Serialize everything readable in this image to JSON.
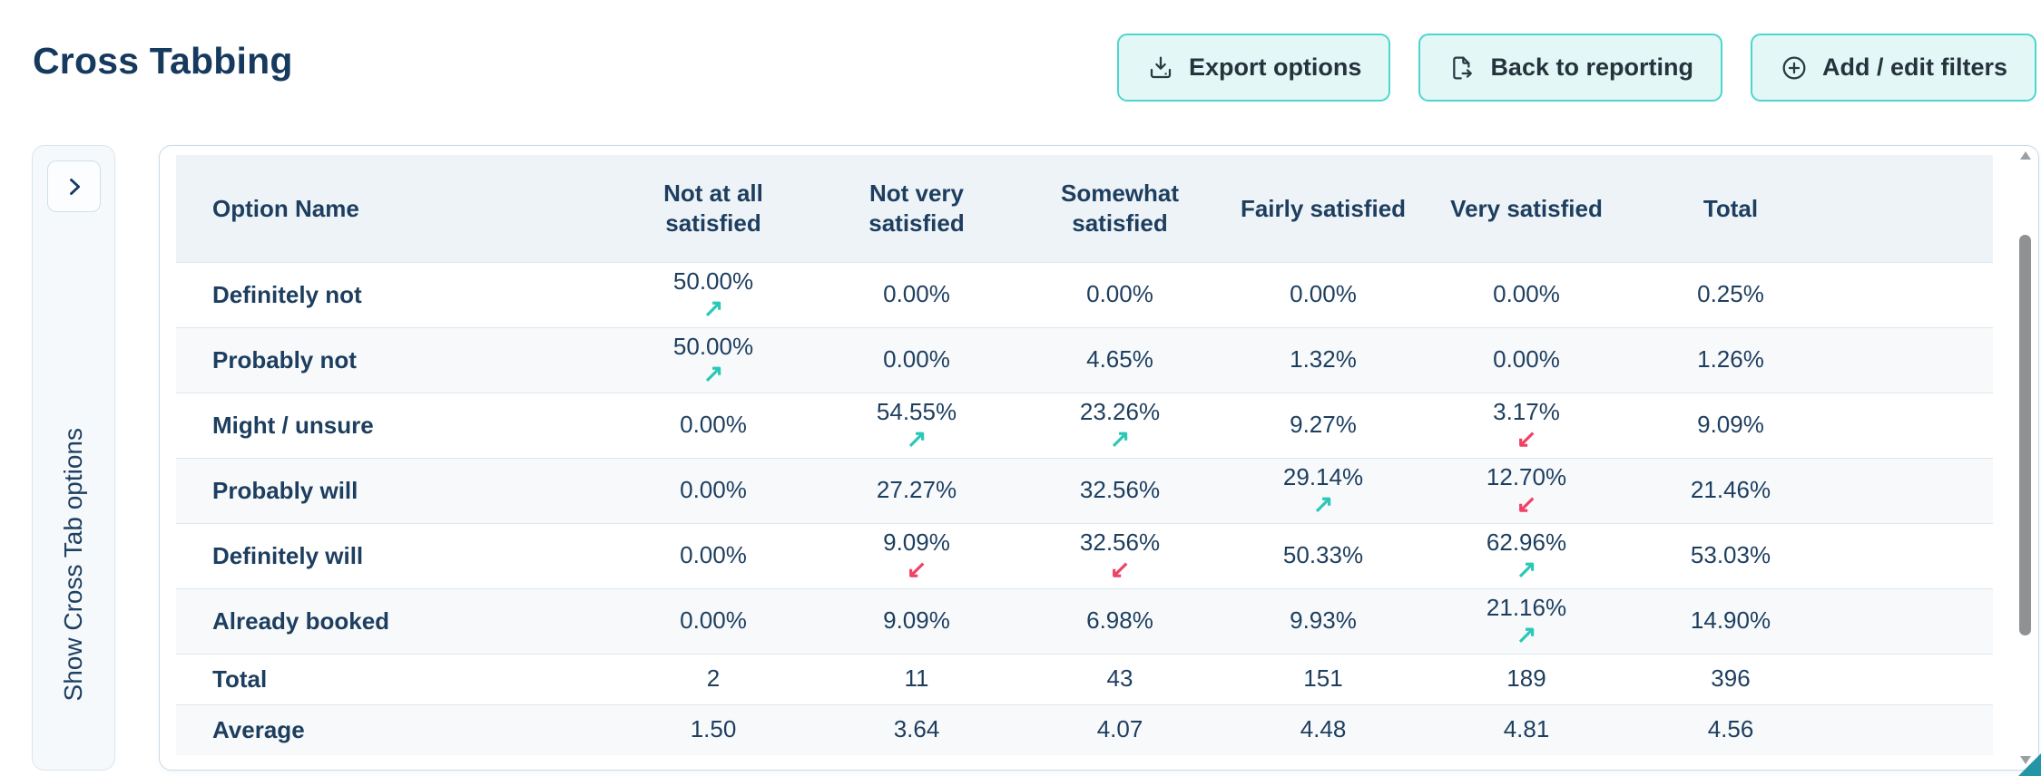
{
  "page": {
    "title": "Cross Tabbing"
  },
  "toolbar": {
    "export_label": "Export options",
    "back_label": "Back to reporting",
    "filters_label": "Add / edit filters"
  },
  "sidebar": {
    "label": "Show Cross Tab options"
  },
  "icons": {
    "trend_up": "↗",
    "trend_down": "↙"
  },
  "colors": {
    "accent_border": "#4cd6ce",
    "button_bg": "#e3f8f6",
    "header_bg": "#edf3f7",
    "row_alt_bg": "#f7f9fb",
    "text_navy": "#1d3e5f",
    "trend_up": "#2bc8b7",
    "trend_down": "#ee4266",
    "corner_wedge": "#2395a7"
  },
  "chart_data": {
    "type": "table",
    "columns": [
      "Option Name",
      "Not at all satisfied",
      "Not very satisfied",
      "Somewhat satisfied",
      "Fairly satisfied",
      "Very satisfied",
      "Total"
    ],
    "rows": [
      {
        "label": "Definitely not",
        "cells": [
          {
            "value": "50.00%",
            "trend": "up"
          },
          {
            "value": "0.00%"
          },
          {
            "value": "0.00%"
          },
          {
            "value": "0.00%"
          },
          {
            "value": "0.00%"
          },
          {
            "value": "0.25%"
          }
        ]
      },
      {
        "label": "Probably not",
        "cells": [
          {
            "value": "50.00%",
            "trend": "up"
          },
          {
            "value": "0.00%"
          },
          {
            "value": "4.65%"
          },
          {
            "value": "1.32%"
          },
          {
            "value": "0.00%"
          },
          {
            "value": "1.26%"
          }
        ]
      },
      {
        "label": "Might / unsure",
        "cells": [
          {
            "value": "0.00%"
          },
          {
            "value": "54.55%",
            "trend": "up"
          },
          {
            "value": "23.26%",
            "trend": "up"
          },
          {
            "value": "9.27%"
          },
          {
            "value": "3.17%",
            "trend": "down"
          },
          {
            "value": "9.09%"
          }
        ]
      },
      {
        "label": "Probably will",
        "cells": [
          {
            "value": "0.00%"
          },
          {
            "value": "27.27%"
          },
          {
            "value": "32.56%"
          },
          {
            "value": "29.14%",
            "trend": "up"
          },
          {
            "value": "12.70%",
            "trend": "down"
          },
          {
            "value": "21.46%"
          }
        ]
      },
      {
        "label": "Definitely will",
        "cells": [
          {
            "value": "0.00%"
          },
          {
            "value": "9.09%",
            "trend": "down"
          },
          {
            "value": "32.56%",
            "trend": "down"
          },
          {
            "value": "50.33%"
          },
          {
            "value": "62.96%",
            "trend": "up"
          },
          {
            "value": "53.03%"
          }
        ]
      },
      {
        "label": "Already booked",
        "cells": [
          {
            "value": "0.00%"
          },
          {
            "value": "9.09%"
          },
          {
            "value": "6.98%"
          },
          {
            "value": "9.93%"
          },
          {
            "value": "21.16%",
            "trend": "up"
          },
          {
            "value": "14.90%"
          }
        ]
      }
    ],
    "summary_rows": [
      {
        "label": "Total",
        "values": [
          "2",
          "11",
          "43",
          "151",
          "189",
          "396"
        ]
      },
      {
        "label": "Average",
        "values": [
          "1.50",
          "3.64",
          "4.07",
          "4.48",
          "4.81",
          "4.56"
        ]
      }
    ]
  }
}
